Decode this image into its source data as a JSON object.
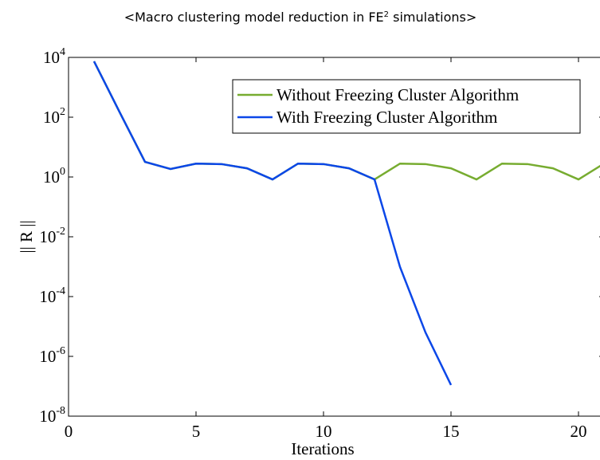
{
  "chart_data": {
    "type": "line",
    "title": [
      "<Macro clustering model reduction in FE",
      "2",
      " simulations>"
    ],
    "xlabel": "Iterations",
    "ylabel": "|| R ||",
    "x": [
      1,
      2,
      3,
      4,
      5,
      6,
      7,
      8,
      9,
      10,
      11,
      12,
      13,
      14,
      15,
      16,
      17,
      18,
      19,
      20,
      21
    ],
    "series": [
      {
        "name": "Without Freezing Cluster Algorithm",
        "color": "#77ac30",
        "values": [
          7400,
          150,
          3.2,
          1.85,
          2.8,
          2.7,
          1.95,
          0.83,
          2.8,
          2.7,
          1.95,
          0.83,
          2.8,
          2.7,
          1.95,
          0.83,
          2.8,
          2.7,
          1.95,
          0.83,
          2.8
        ]
      },
      {
        "name": "With Freezing Cluster Algorithm",
        "color": "#0b47e8",
        "values": [
          7400,
          150,
          3.2,
          1.85,
          2.8,
          2.7,
          1.95,
          0.83,
          2.8,
          2.7,
          1.95,
          0.83,
          0.00098,
          6.3e-06,
          1.1e-07,
          null,
          null,
          null,
          null,
          null,
          null
        ]
      }
    ],
    "xlim": [
      0,
      21
    ],
    "xticks": [
      0,
      5,
      10,
      15,
      20
    ],
    "ylim": [
      1e-08,
      10000
    ],
    "ylog": true,
    "yticks": [
      {
        "value": 1e-08,
        "label": [
          "10",
          "-8"
        ]
      },
      {
        "value": 1e-06,
        "label": [
          "10",
          "-6"
        ]
      },
      {
        "value": 0.0001,
        "label": [
          "10",
          "-4"
        ]
      },
      {
        "value": 0.01,
        "label": [
          "10",
          "-2"
        ]
      },
      {
        "value": 1,
        "label": [
          "10",
          "0"
        ]
      },
      {
        "value": 100,
        "label": [
          "10",
          "2"
        ]
      },
      {
        "value": 10000,
        "label": [
          "10",
          "4"
        ]
      }
    ],
    "grid": false,
    "legend": "top-right"
  }
}
